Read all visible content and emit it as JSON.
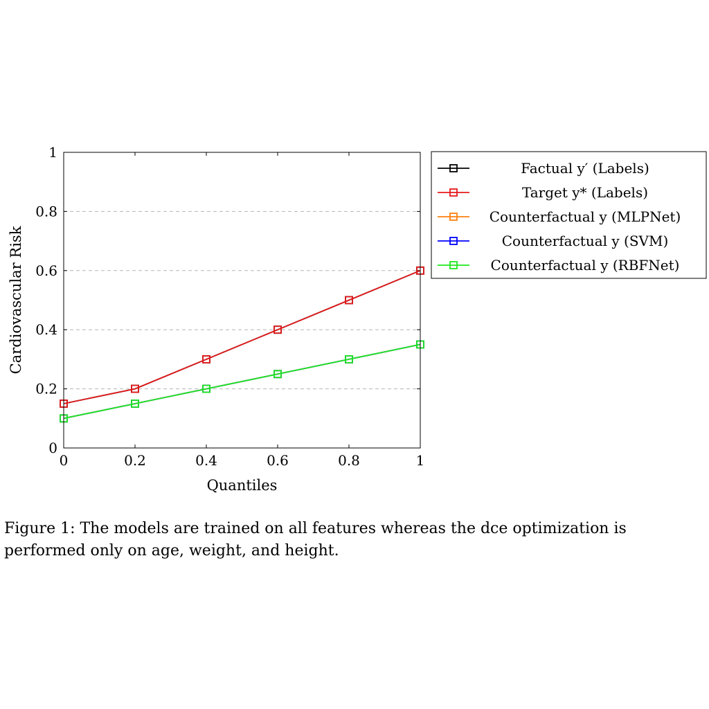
{
  "chart_data": {
    "type": "line",
    "x": [
      0,
      0.2,
      0.4,
      0.6,
      0.8,
      1
    ],
    "x_tick_labels": [
      "0",
      "0.2",
      "0.4",
      "0.6",
      "0.8",
      "1"
    ],
    "y_tick_labels": [
      "0",
      "0.2",
      "0.4",
      "0.6",
      "0.8",
      "1"
    ],
    "y_ticks": [
      0,
      0.2,
      0.4,
      0.6,
      0.8,
      1
    ],
    "xlabel": "Quantiles",
    "ylabel": "Cardiovascular Risk",
    "xlim": [
      0,
      1
    ],
    "ylim": [
      0,
      1
    ],
    "grid": "horizontal dashed",
    "legend_position": "outside right, top",
    "marker": "square",
    "series": [
      {
        "name": "Factual y′ (Labels)",
        "color": "#000000",
        "values": [
          0.15,
          0.2,
          0.3,
          0.4,
          0.5,
          0.6
        ]
      },
      {
        "name": "Target y* (Labels)",
        "color": "#e41a1c",
        "values": [
          0.15,
          0.2,
          0.3,
          0.4,
          0.5,
          0.6
        ]
      },
      {
        "name": "Counterfactual y (MLPNet)",
        "color": "#ff7f0e",
        "values": [
          0.1,
          0.15,
          0.2,
          0.25,
          0.3,
          0.35
        ]
      },
      {
        "name": "Counterfactual y (SVM)",
        "color": "#0000ff",
        "values": [
          0.1,
          0.15,
          0.2,
          0.25,
          0.3,
          0.35
        ]
      },
      {
        "name": "Counterfactual y (RBFNet)",
        "color": "#1ee81e",
        "values": [
          0.1,
          0.15,
          0.2,
          0.25,
          0.3,
          0.35
        ]
      }
    ]
  },
  "caption": "Figure 1: The models are trained on all features whereas the dce optimization is performed only on age, weight, and height."
}
